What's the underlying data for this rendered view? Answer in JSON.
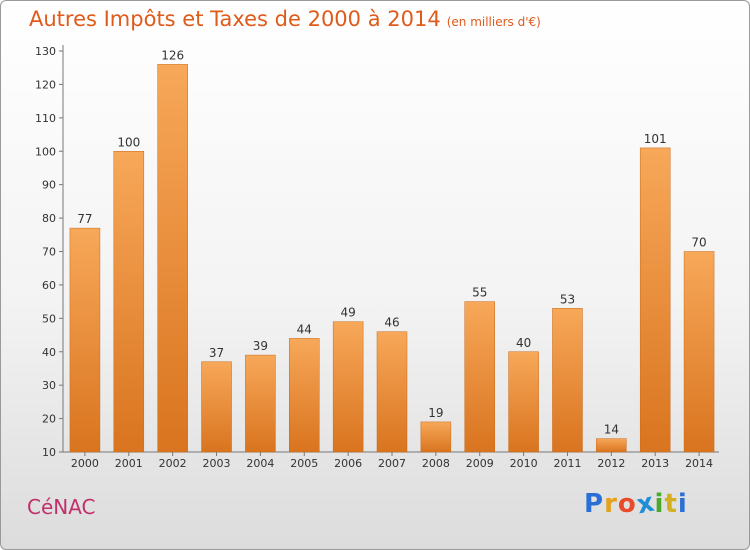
{
  "header": {
    "title": "Autres Impôts et Taxes de 2000 à 2014",
    "subtitle": "(en milliers d'€)"
  },
  "footer": {
    "commune": "CéNAC",
    "brand_letters": [
      "P",
      "r",
      "o",
      "x",
      "i",
      "t",
      "i"
    ],
    "brand_colors": [
      "#2a6fd6",
      "#e3a21a",
      "#e84a2a",
      "#1e8ed6",
      "#4aa82a",
      "#d4b020",
      "#2a6fd6"
    ]
  },
  "chart_data": {
    "type": "bar",
    "categories": [
      "2000",
      "2001",
      "2002",
      "2003",
      "2004",
      "2005",
      "2006",
      "2007",
      "2008",
      "2009",
      "2010",
      "2011",
      "2012",
      "2013",
      "2014"
    ],
    "values": [
      77,
      100,
      126,
      37,
      39,
      44,
      49,
      46,
      19,
      55,
      40,
      53,
      14,
      101,
      70
    ],
    "ylim": [
      10,
      130
    ],
    "yticks": [
      10,
      20,
      30,
      40,
      50,
      60,
      70,
      80,
      90,
      100,
      110,
      120,
      130
    ],
    "grid": false,
    "bar_color_light": "#f7a859",
    "bar_color_dark": "#d9741f"
  }
}
